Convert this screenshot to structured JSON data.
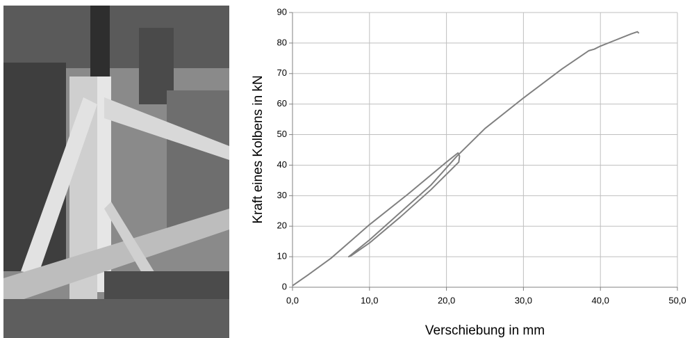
{
  "chart_data": {
    "type": "line",
    "x_label": "Verschiebung in mm",
    "y_label": "Kraft eines Kolbens in kN",
    "x": [
      0,
      2,
      5,
      10,
      15,
      20,
      21.5,
      21.7,
      21.6,
      18,
      14,
      10,
      7.6,
      7.3,
      7.6,
      10,
      14,
      18,
      21.3,
      25,
      30,
      35,
      38.5,
      39.2,
      40,
      42,
      44,
      44.8,
      45
    ],
    "values": [
      0.5,
      4,
      9.5,
      20.5,
      30.5,
      41,
      44,
      43,
      41,
      32,
      23,
      14.5,
      10.3,
      10,
      10.6,
      15.5,
      24.5,
      33.5,
      42.8,
      52,
      62,
      71.5,
      77.5,
      78,
      79,
      81,
      83,
      83.7,
      83.2
    ],
    "color": "#808080",
    "xlim": [
      0,
      50
    ],
    "xticks": [
      {
        "value": 0,
        "label": "0,0"
      },
      {
        "value": 10,
        "label": "10,0"
      },
      {
        "value": 20,
        "label": "20,0"
      },
      {
        "value": 30,
        "label": "30,0"
      },
      {
        "value": 40,
        "label": "40,0"
      },
      {
        "value": 50,
        "label": "50,0"
      }
    ],
    "ylim": [
      0,
      90
    ],
    "yticks": [
      0,
      10,
      20,
      30,
      40,
      50,
      60,
      70,
      80,
      90
    ],
    "grid": true
  }
}
